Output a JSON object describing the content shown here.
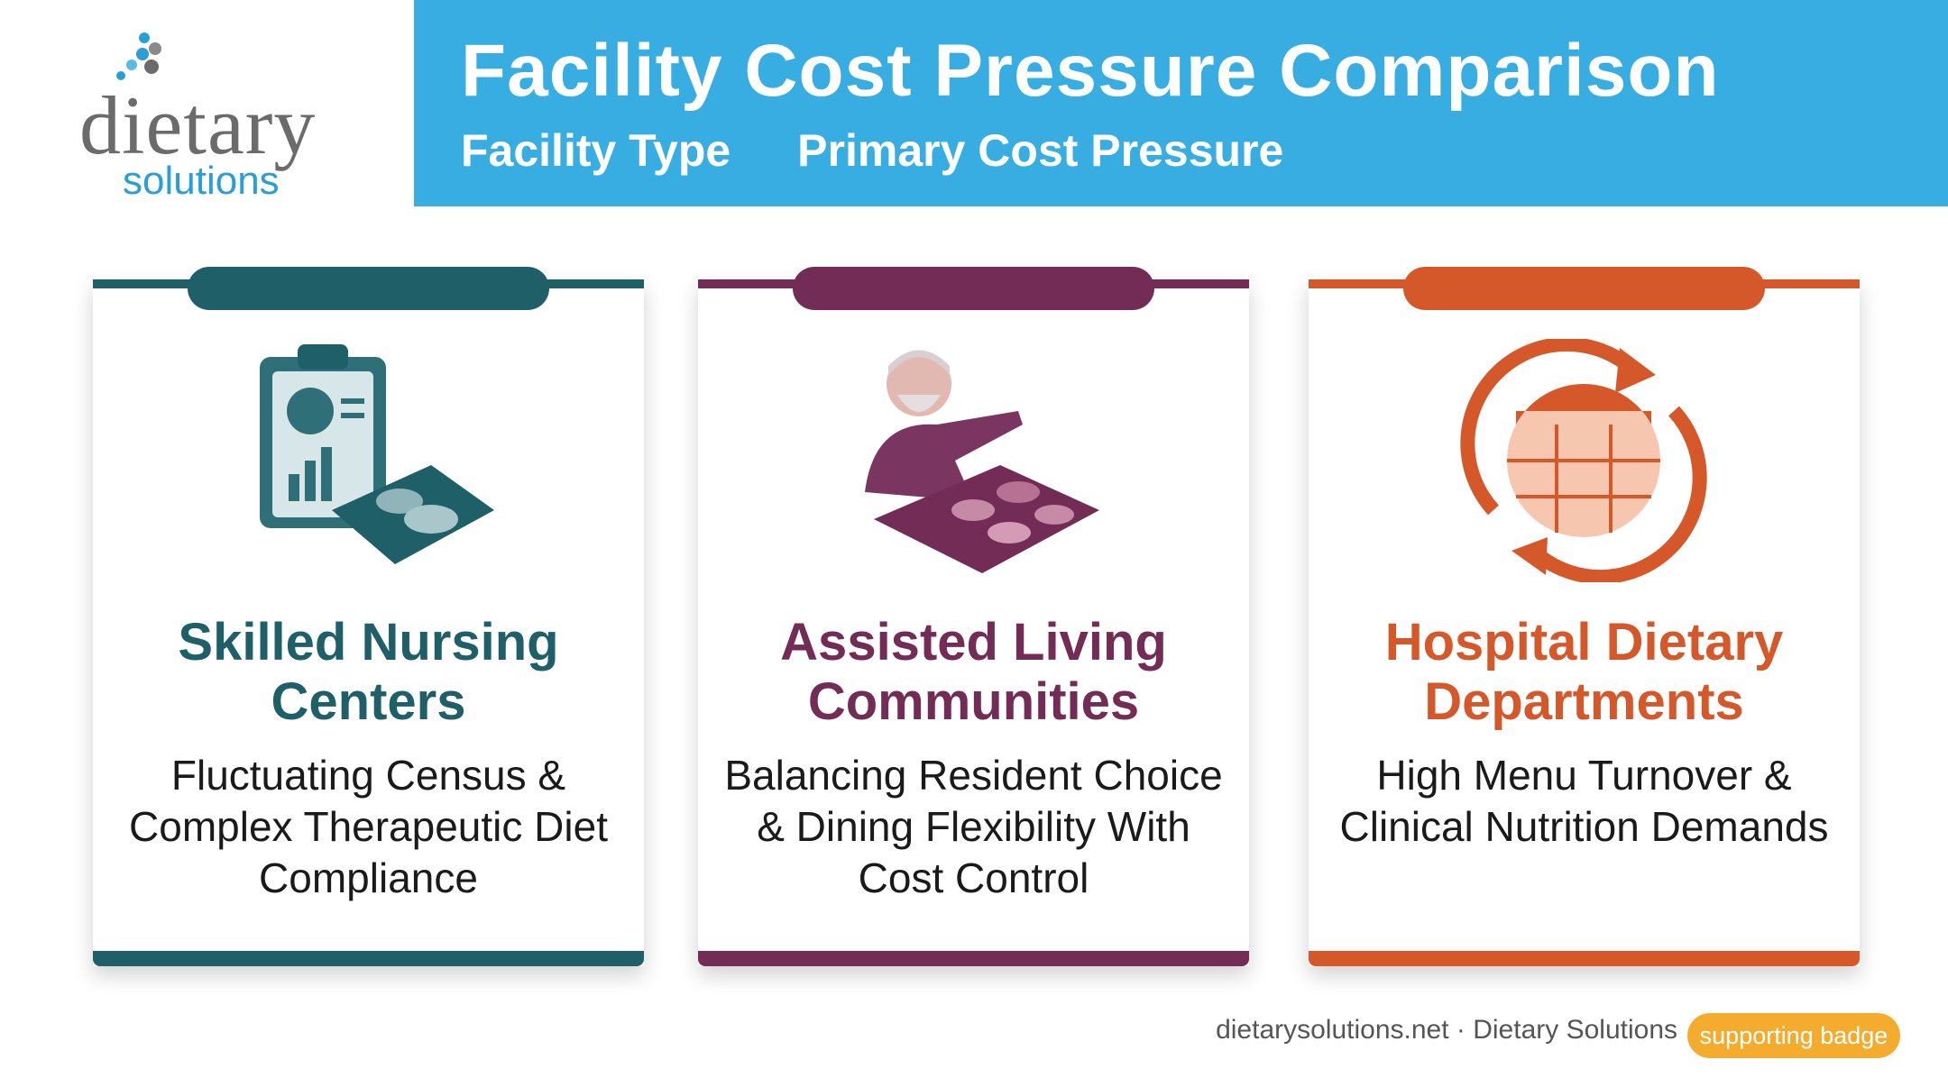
{
  "logo": {
    "word": "dietary",
    "subword": "solutions"
  },
  "header": {
    "title": "Facility Cost Pressure Comparison",
    "columns": [
      "Facility Type",
      "Primary Cost Pressure"
    ]
  },
  "cards": [
    {
      "title": "Skilled Nursing Centers",
      "description": "Fluctuating Census & Complex Therapeutic Diet Compliance"
    },
    {
      "title": "Assisted Living Communities",
      "description": "Balancing Resident Choice & Dining Flexibility With Cost Control"
    },
    {
      "title": "Hospital Dietary Departments",
      "description": "High Menu Turnover & Clinical Nutrition Demands"
    }
  ],
  "footer": {
    "text": "dietarysolutions.net · Dietary Solutions",
    "badge": "supporting badge"
  }
}
